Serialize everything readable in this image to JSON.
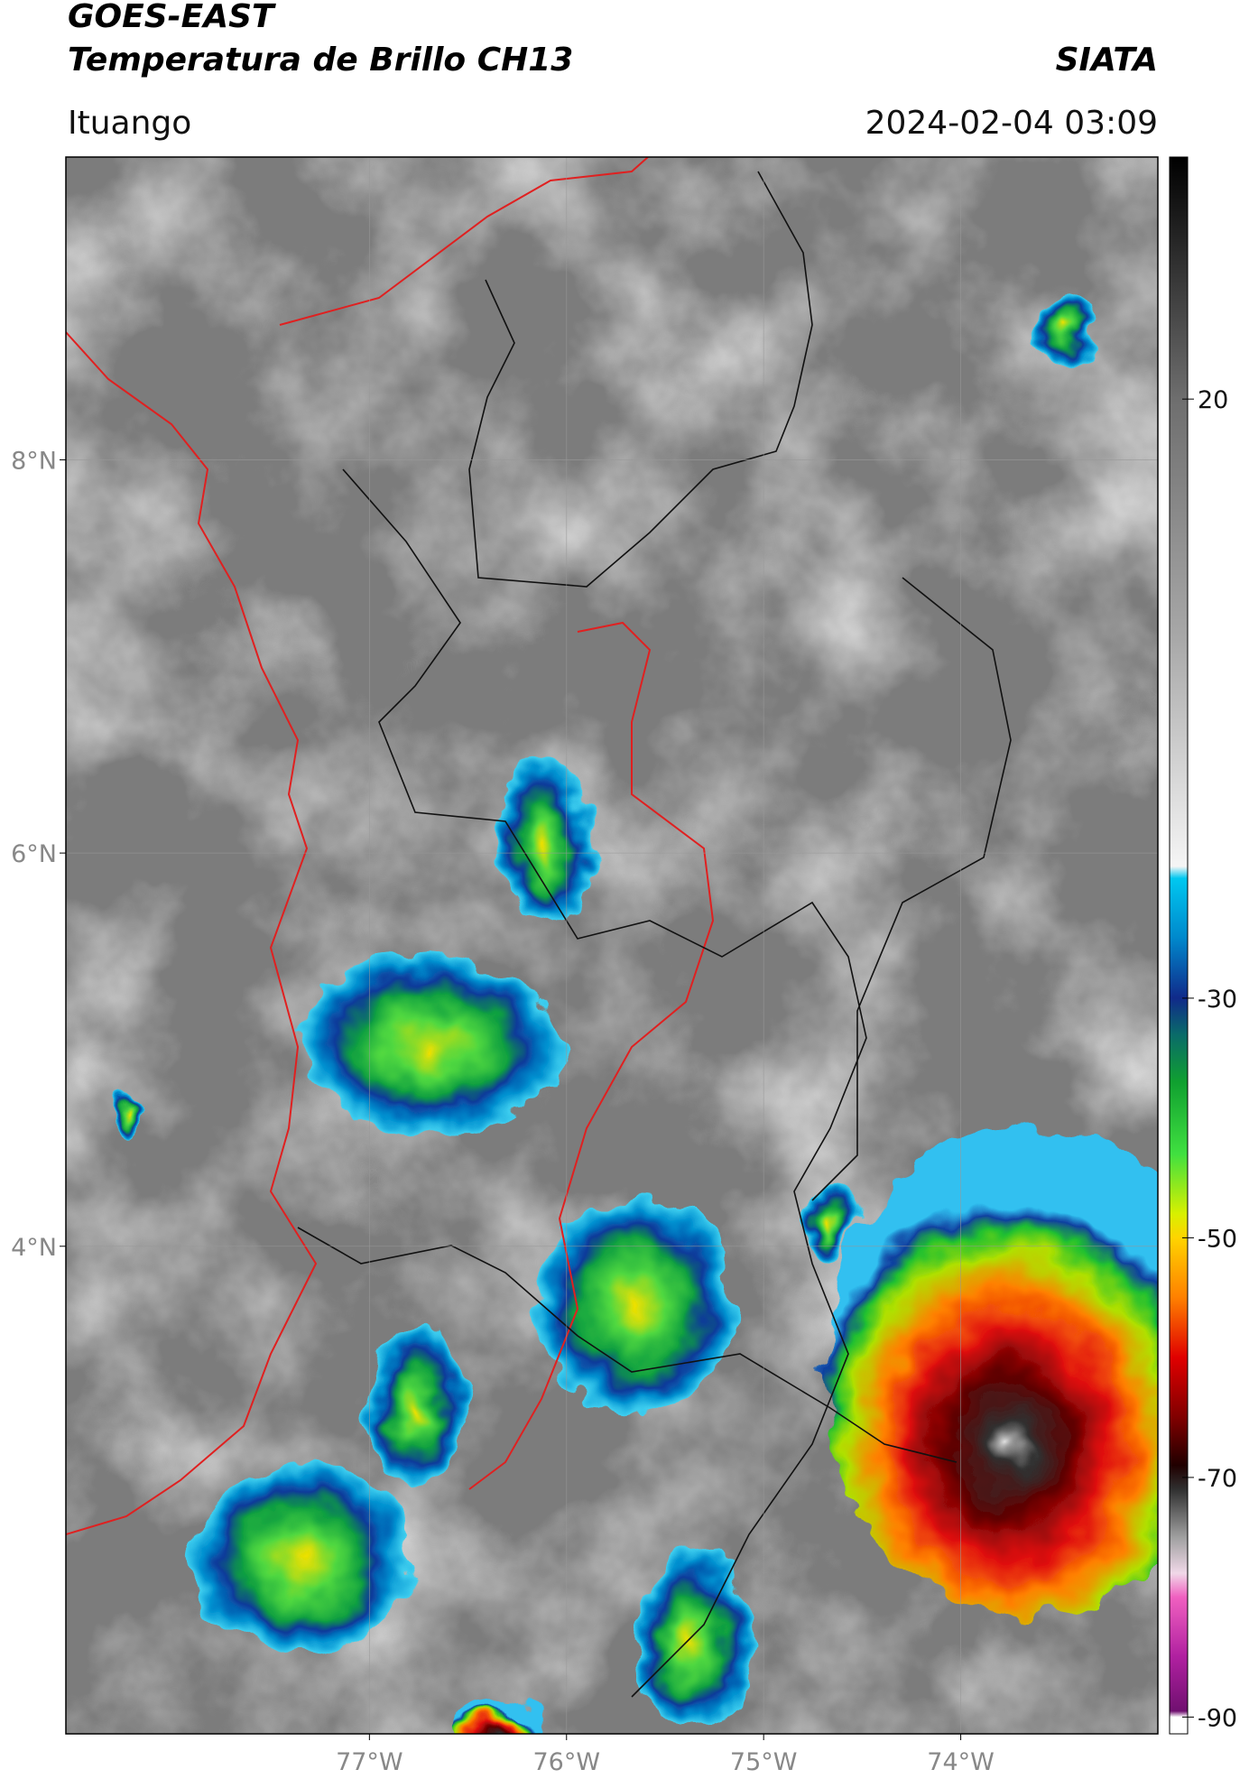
{
  "header": {
    "title": "GOES-EAST",
    "subtitle": "Temperatura de Brillo CH13",
    "source": "SIATA",
    "location": "Ituango",
    "timestamp": "2024-02-04 03:09"
  },
  "map": {
    "xlim": [
      -78.54,
      -73.0
    ],
    "ylim": [
      1.52,
      9.54
    ],
    "xticks": [
      {
        "value": -77,
        "label": "77°W"
      },
      {
        "value": -76,
        "label": "76°W"
      },
      {
        "value": -75,
        "label": "75°W"
      },
      {
        "value": -74,
        "label": "74°W"
      }
    ],
    "yticks": [
      {
        "value": 8,
        "label": "8°N"
      },
      {
        "value": 6,
        "label": "6°N"
      },
      {
        "value": 4,
        "label": "4°N"
      }
    ],
    "grid": true
  },
  "colorbar": {
    "lim": [
      -91.4,
      40.2
    ],
    "ticks": [
      20,
      -30,
      -50,
      -70,
      -90
    ],
    "colormap": [
      {
        "value": 40.2,
        "color": "#000000"
      },
      {
        "value": 20,
        "color": "#6e6e6e"
      },
      {
        "value": 0,
        "color": "#a8a8a8"
      },
      {
        "value": -19,
        "color": "#f5f5f5"
      },
      {
        "value": -20,
        "color": "#00c8f0"
      },
      {
        "value": -25,
        "color": "#0088cc"
      },
      {
        "value": -30,
        "color": "#102a8a"
      },
      {
        "value": -33,
        "color": "#0a6a6a"
      },
      {
        "value": -37,
        "color": "#10a030"
      },
      {
        "value": -43,
        "color": "#40e040"
      },
      {
        "value": -48,
        "color": "#d8f000"
      },
      {
        "value": -50,
        "color": "#ffd400"
      },
      {
        "value": -55,
        "color": "#ff8000"
      },
      {
        "value": -60,
        "color": "#e00000"
      },
      {
        "value": -65,
        "color": "#800000"
      },
      {
        "value": -69,
        "color": "#200000"
      },
      {
        "value": -71,
        "color": "#303030"
      },
      {
        "value": -75,
        "color": "#a0a0a0"
      },
      {
        "value": -78,
        "color": "#f0d8e8"
      },
      {
        "value": -80,
        "color": "#f060c0"
      },
      {
        "value": -85,
        "color": "#b020a0"
      },
      {
        "value": -89.5,
        "color": "#701070"
      },
      {
        "value": -90,
        "color": "#ffffff"
      },
      {
        "value": -91.4,
        "color": "#ffffff"
      }
    ]
  }
}
